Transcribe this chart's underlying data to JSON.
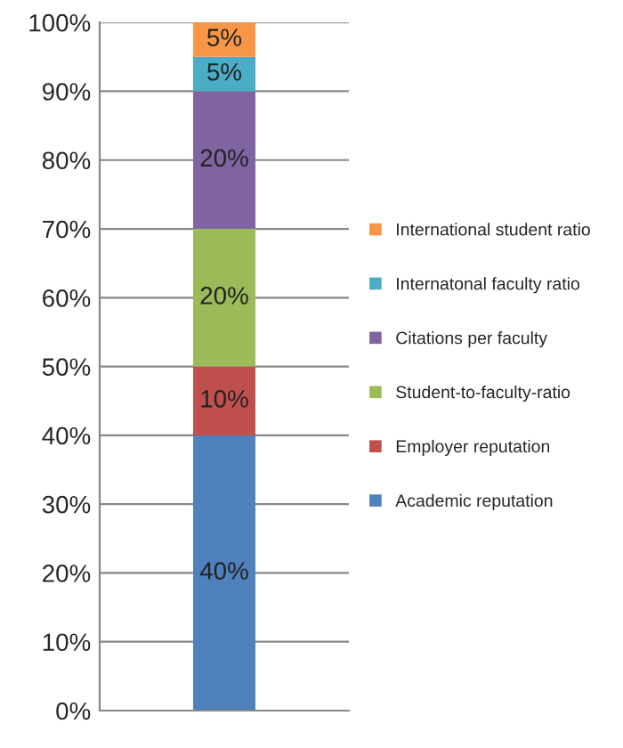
{
  "chart_data": {
    "type": "bar",
    "stacked": true,
    "categories": [
      null
    ],
    "series": [
      {
        "name": "Academic reputation",
        "color": "#4f81bd",
        "values": [
          40
        ],
        "value_labels": [
          "40%"
        ]
      },
      {
        "name": "Employer reputation",
        "color": "#c0504d",
        "values": [
          10
        ],
        "value_labels": [
          "10%"
        ]
      },
      {
        "name": "Student-to-faculty-ratio",
        "color": "#9bbb59",
        "values": [
          20
        ],
        "value_labels": [
          "20%"
        ]
      },
      {
        "name": "Citations per faculty",
        "color": "#8064a2",
        "values": [
          20
        ],
        "value_labels": [
          "20%"
        ]
      },
      {
        "name": "Internatonal faculty ratio",
        "color": "#4bacc6",
        "values": [
          5
        ],
        "value_labels": [
          "5%"
        ]
      },
      {
        "name": "International student ratio",
        "color": "#f79646",
        "values": [
          5
        ],
        "value_labels": [
          "5%"
        ]
      }
    ],
    "ylim": [
      0,
      100
    ],
    "yticks": [
      {
        "value": 0,
        "label": "0%"
      },
      {
        "value": 10,
        "label": "10%"
      },
      {
        "value": 20,
        "label": "20%"
      },
      {
        "value": 30,
        "label": "30%"
      },
      {
        "value": 40,
        "label": "40%"
      },
      {
        "value": 50,
        "label": "50%"
      },
      {
        "value": 60,
        "label": "60%"
      },
      {
        "value": 70,
        "label": "70%"
      },
      {
        "value": 80,
        "label": "80%"
      },
      {
        "value": 90,
        "label": "90%"
      },
      {
        "value": 100,
        "label": "100%"
      }
    ],
    "grid": "y",
    "legend": "right"
  }
}
